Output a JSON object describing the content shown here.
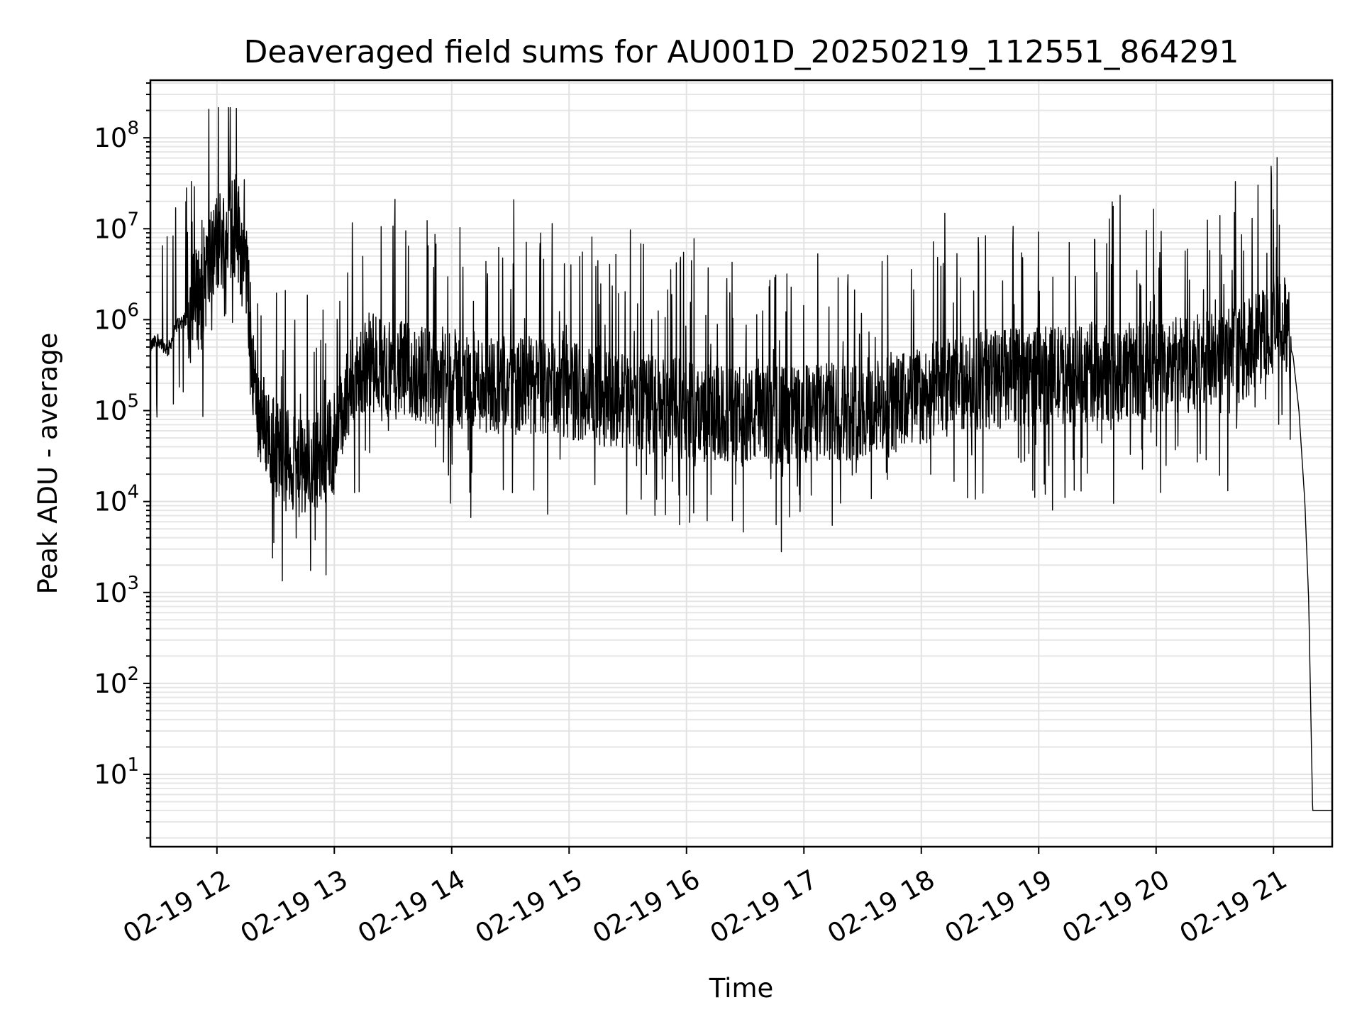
{
  "chart_data": {
    "type": "line",
    "title": "Deaveraged field sums for AU001D_20250219_112551_864291",
    "xlabel": "Time",
    "ylabel": "Peak ADU - average",
    "x_ticks": [
      "02-19 12",
      "02-19 13",
      "02-19 14",
      "02-19 15",
      "02-19 16",
      "02-19 17",
      "02-19 18",
      "02-19 19",
      "02-19 20",
      "02-19 21"
    ],
    "y_ticks": [
      {
        "base": "10",
        "exp": "1"
      },
      {
        "base": "10",
        "exp": "2"
      },
      {
        "base": "10",
        "exp": "3"
      },
      {
        "base": "10",
        "exp": "4"
      },
      {
        "base": "10",
        "exp": "5"
      },
      {
        "base": "10",
        "exp": "6"
      },
      {
        "base": "10",
        "exp": "7"
      },
      {
        "base": "10",
        "exp": "8"
      }
    ],
    "yscale": "log",
    "ylim": [
      1.6,
      430000000
    ],
    "xlim": [
      "02-19 11:26",
      "02-19 21:30"
    ],
    "grid": true,
    "series": [
      {
        "color": "#000000",
        "x": [
          "02-19 11:26",
          "02-19 11:30",
          "02-19 11:35",
          "02-19 11:40",
          "02-19 11:45",
          "02-19 11:50",
          "02-19 11:55",
          "02-19 12:00",
          "02-19 12:05",
          "02-19 12:10",
          "02-19 12:15",
          "02-19 12:20",
          "02-19 12:25",
          "02-19 12:30",
          "02-19 12:35",
          "02-19 12:40",
          "02-19 12:45",
          "02-19 12:50",
          "02-19 12:55",
          "02-19 13:00",
          "02-19 13:10",
          "02-19 13:20",
          "02-19 13:30",
          "02-19 13:45",
          "02-19 14:00",
          "02-19 14:15",
          "02-19 14:30",
          "02-19 14:45",
          "02-19 15:00",
          "02-19 15:15",
          "02-19 15:30",
          "02-19 15:45",
          "02-19 16:00",
          "02-19 16:15",
          "02-19 16:30",
          "02-19 16:45",
          "02-19 17:00",
          "02-19 17:15",
          "02-19 17:30",
          "02-19 17:45",
          "02-19 18:00",
          "02-19 18:15",
          "02-19 18:30",
          "02-19 18:45",
          "02-19 19:00",
          "02-19 19:15",
          "02-19 19:30",
          "02-19 19:45",
          "02-19 20:00",
          "02-19 20:15",
          "02-19 20:30",
          "02-19 20:45",
          "02-19 21:00",
          "02-19 21:05",
          "02-19 21:10",
          "02-19 21:13",
          "02-19 21:16",
          "02-19 21:18",
          "02-19 21:20",
          "02-19 21:30"
        ],
        "y": [
          500000,
          600000,
          450000,
          900000,
          1000000,
          1500000,
          3000000,
          6000000,
          8000000,
          10000000,
          3000000,
          100000,
          60000,
          35000,
          30000,
          20000,
          20000,
          25000,
          30000,
          40000,
          200000,
          300000,
          250000,
          220000,
          200000,
          180000,
          170000,
          160000,
          150000,
          130000,
          110000,
          100000,
          90000,
          80000,
          75000,
          80000,
          80000,
          85000,
          90000,
          100000,
          130000,
          160000,
          190000,
          200000,
          210000,
          220000,
          230000,
          240000,
          250000,
          280000,
          320000,
          380000,
          800000,
          850000,
          400000,
          100000,
          10000,
          800,
          4,
          4
        ]
      }
    ]
  }
}
